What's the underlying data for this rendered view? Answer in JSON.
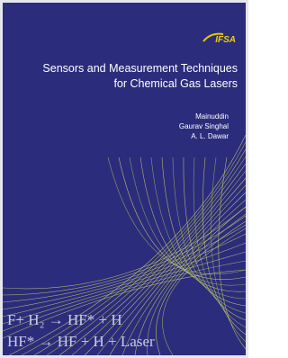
{
  "logo": "IFSA",
  "title": [
    "Sensors and Measurement Techniques",
    "for Chemical Gas Lasers"
  ],
  "authors": [
    "Mainuddin",
    "Gaurav Singhal",
    "A. L. Dawar"
  ],
  "equations": [
    "F+ H₂ → HF* + H",
    "HF* → HF + H + Laser"
  ]
}
